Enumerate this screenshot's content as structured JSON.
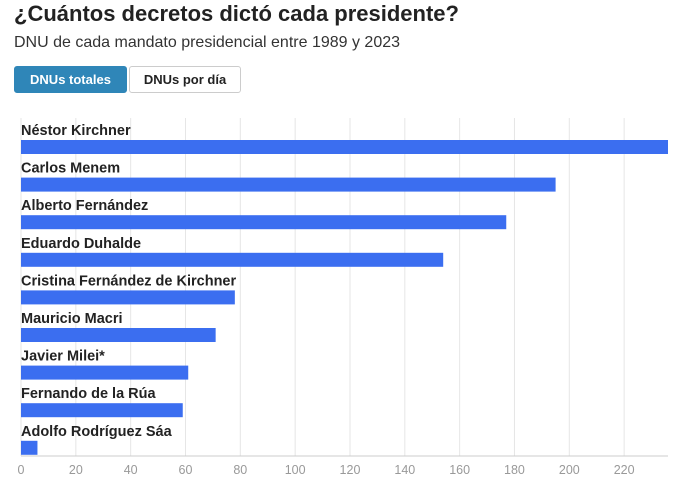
{
  "header": {
    "title": "¿Cuántos decretos dictó cada presidente?",
    "subtitle": "DNU de cada mandato presidencial entre 1989 y 2023"
  },
  "tabs": [
    {
      "label": "DNUs totales",
      "active": true
    },
    {
      "label": "DNUs por día",
      "active": false
    }
  ],
  "colors": {
    "bar": "#3b6ef0",
    "active_tab": "#2f86b8"
  },
  "chart_data": {
    "type": "bar",
    "orientation": "horizontal",
    "categories": [
      "Néstor Kirchner",
      "Carlos Menem",
      "Alberto Fernández",
      "Eduardo Duhalde",
      "Cristina Fernández de Kirchner",
      "Mauricio Macri",
      "Javier Milei*",
      "Fernando de la Rúa",
      "Adolfo Rodríguez Sáa"
    ],
    "values": [
      236,
      195,
      177,
      154,
      78,
      71,
      61,
      59,
      6
    ],
    "xlim": [
      0,
      236
    ],
    "xticks": [
      0,
      20,
      40,
      60,
      80,
      100,
      120,
      140,
      160,
      180,
      200,
      220
    ],
    "grid": true
  }
}
